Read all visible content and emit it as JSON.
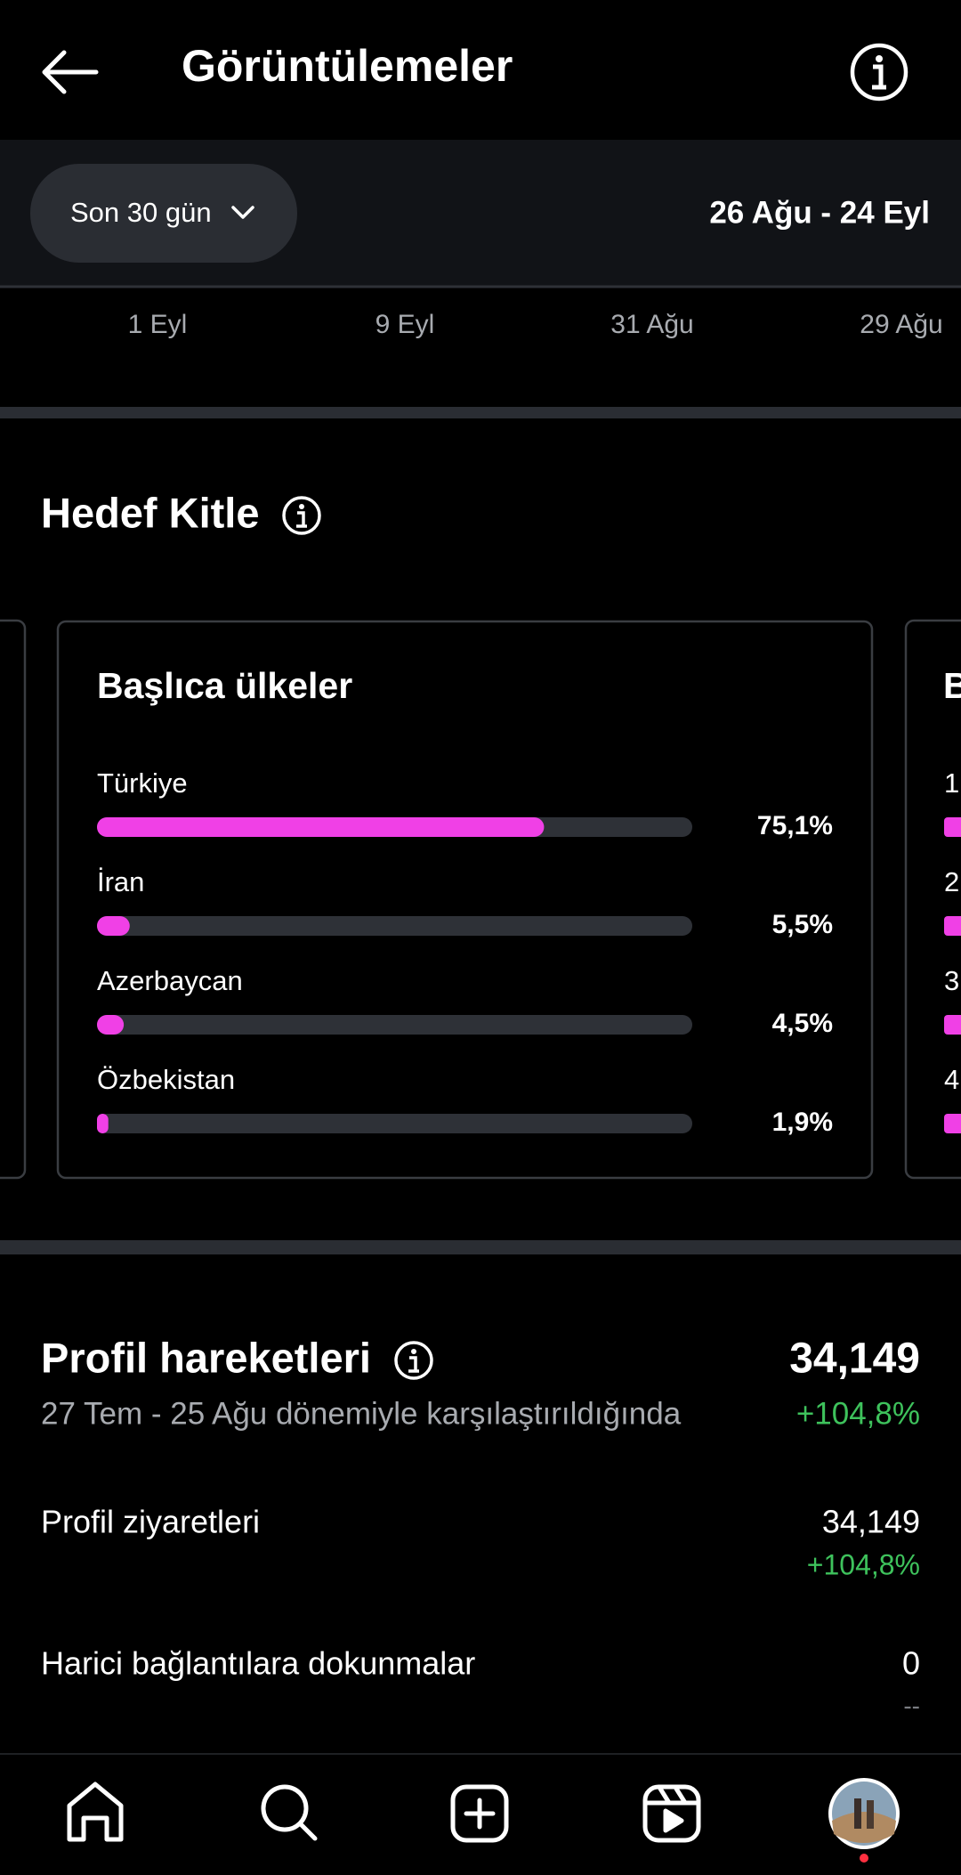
{
  "header": {
    "title": "Görüntülemeler"
  },
  "filter": {
    "period": "Son 30 gün",
    "range": "26 Ağu - 24 Eyl"
  },
  "timeline": {
    "labels": [
      "1 Eyl",
      "9 Eyl",
      "31 Ağu",
      "29 Ağu"
    ]
  },
  "audience": {
    "title": "Hedef Kitle",
    "chart_data": {
      "type": "bar",
      "title": "Başlıca ülkeler",
      "color": "#f040e6",
      "track_color": "#2e3137",
      "xlim": [
        0,
        100
      ],
      "categories": [
        "Türkiye",
        "İran",
        "Azerbaycan",
        "Özbekistan"
      ],
      "values": [
        75.1,
        5.5,
        4.5,
        1.9
      ],
      "value_labels": [
        "75,1%",
        "5,5%",
        "4,5%",
        "1,9%"
      ]
    },
    "next_card": {
      "title": "B",
      "ranks": [
        "1",
        "2",
        "3",
        "4"
      ]
    }
  },
  "profile_activity": {
    "title": "Profil hareketleri",
    "total": "34,149",
    "change": "+104,8%",
    "comparison": "27 Tem - 25 Ağu dönemiyle karşılaştırıldığında",
    "rows": [
      {
        "label": "Profil ziyaretleri",
        "value": "34,149",
        "change": "+104,8%"
      },
      {
        "label": "Harici bağlantılara dokunmalar",
        "value": "0",
        "change": "--"
      }
    ]
  }
}
